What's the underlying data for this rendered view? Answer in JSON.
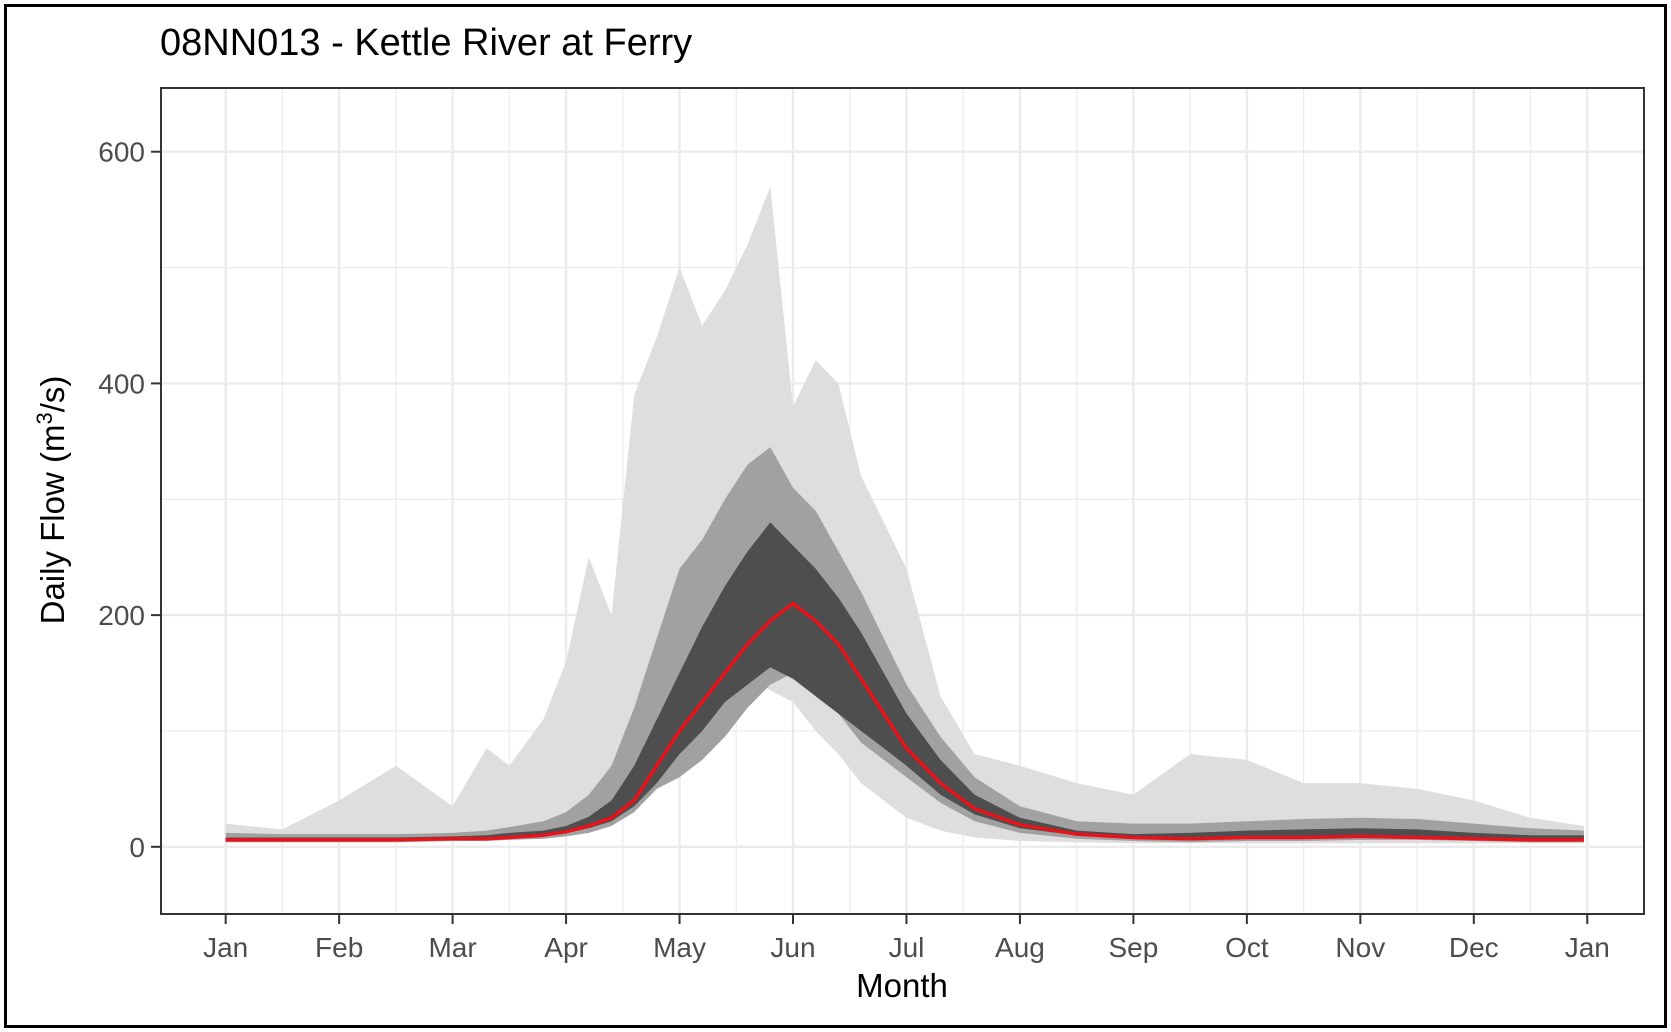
{
  "chart_data": {
    "type": "area",
    "title": "08NN013 - Kettle River at Ferry",
    "xlabel": "Month",
    "ylabel_main": "Daily Flow (m",
    "ylabel_sup": "3",
    "ylabel_end": "/s)",
    "ylim": [
      -58,
      655
    ],
    "xlim": [
      -0.57,
      12.5
    ],
    "grid": true,
    "x_tick_labels": [
      "Jan",
      "Feb",
      "Mar",
      "Apr",
      "May",
      "Jun",
      "Jul",
      "Aug",
      "Sep",
      "Oct",
      "Nov",
      "Dec",
      "Jan"
    ],
    "y_ticks": [
      0,
      200,
      400,
      600
    ],
    "y_tick_labels": [
      "0",
      "200",
      "400",
      "600"
    ],
    "colors": {
      "band_outer": "#dedede",
      "band_middle": "#a1a1a1",
      "band_inner": "#4e4e4e",
      "median": "#e8121a",
      "grid": "#ebebeb"
    },
    "x": [
      0,
      0.5,
      1.0,
      1.5,
      2.0,
      2.3,
      2.5,
      2.8,
      3.0,
      3.2,
      3.4,
      3.6,
      3.8,
      4.0,
      4.2,
      4.4,
      4.6,
      4.8,
      5.0,
      5.2,
      5.4,
      5.6,
      5.8,
      6.0,
      6.3,
      6.6,
      7.0,
      7.5,
      8.0,
      8.5,
      9.0,
      9.5,
      10.0,
      10.5,
      11.0,
      11.5,
      11.97
    ],
    "series": [
      {
        "values": [
          4,
          4,
          4,
          4,
          5,
          6,
          7,
          8,
          10,
          15,
          22,
          40,
          80,
          110,
          150,
          180,
          150,
          135,
          125,
          100,
          80,
          55,
          40,
          25,
          14,
          8,
          5,
          4,
          3,
          3,
          3,
          3,
          3,
          3,
          3,
          3,
          3
        ]
      },
      {
        "values": [
          20,
          15,
          40,
          70,
          35,
          85,
          70,
          110,
          160,
          250,
          200,
          390,
          440,
          500,
          450,
          480,
          520,
          570,
          380,
          420,
          400,
          320,
          280,
          240,
          130,
          80,
          70,
          55,
          45,
          80,
          75,
          55,
          55,
          50,
          40,
          25,
          18
        ]
      },
      {
        "values": [
          4,
          4,
          4,
          4,
          5,
          5,
          6,
          7,
          9,
          12,
          18,
          30,
          50,
          60,
          75,
          95,
          120,
          140,
          150,
          130,
          115,
          90,
          75,
          60,
          38,
          22,
          12,
          7,
          5,
          4,
          5,
          5,
          6,
          6,
          5,
          4,
          4
        ]
      },
      {
        "values": [
          12,
          11,
          11,
          11,
          12,
          14,
          17,
          22,
          30,
          45,
          70,
          120,
          180,
          240,
          265,
          300,
          330,
          345,
          310,
          290,
          255,
          220,
          180,
          140,
          95,
          60,
          35,
          22,
          20,
          20,
          22,
          24,
          25,
          24,
          20,
          16,
          14
        ]
      },
      {
        "values": [
          5,
          5,
          5,
          5,
          6,
          6,
          7,
          9,
          12,
          16,
          22,
          35,
          55,
          80,
          100,
          125,
          140,
          155,
          145,
          130,
          115,
          100,
          85,
          70,
          45,
          28,
          16,
          10,
          8,
          8,
          8,
          9,
          10,
          9,
          8,
          6,
          6
        ]
      },
      {
        "values": [
          8,
          8,
          8,
          8,
          9,
          10,
          12,
          14,
          18,
          26,
          40,
          70,
          110,
          150,
          190,
          225,
          255,
          280,
          260,
          240,
          215,
          185,
          150,
          115,
          75,
          45,
          25,
          14,
          11,
          12,
          14,
          15,
          16,
          15,
          12,
          10,
          10
        ]
      },
      {
        "name": "",
        "values": [
          6,
          6,
          6,
          6,
          7,
          7,
          8,
          10,
          13,
          18,
          25,
          40,
          70,
          100,
          125,
          150,
          175,
          195,
          210,
          195,
          175,
          145,
          115,
          85,
          55,
          33,
          19,
          11,
          8,
          7,
          8,
          8,
          9,
          8,
          7,
          6,
          6
        ]
      }
    ]
  }
}
